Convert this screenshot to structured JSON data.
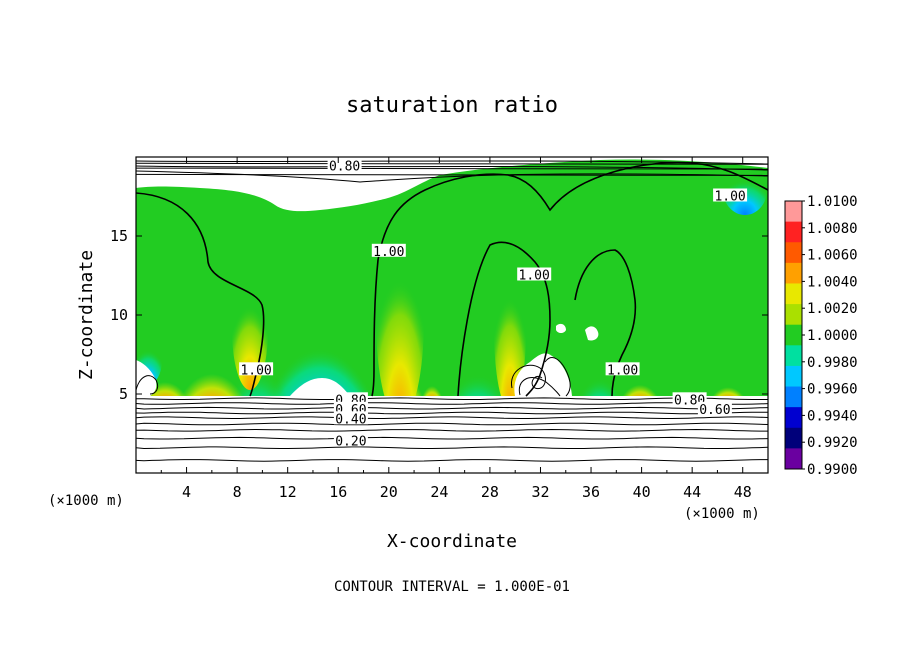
{
  "chart_data": {
    "type": "heatmap",
    "title": "saturation ratio",
    "xlabel": "X-coordinate",
    "ylabel": "Z-coordinate",
    "x_unit_left": "(×1000 m)",
    "x_unit_right": "(×1000 m)",
    "xlim": [
      0,
      50
    ],
    "ylim": [
      0,
      20
    ],
    "x_ticks": [
      4,
      8,
      12,
      16,
      20,
      24,
      28,
      32,
      36,
      40,
      44,
      48
    ],
    "y_ticks": [
      5,
      10,
      15
    ],
    "footer": "CONTOUR INTERVAL = 1.000E-01",
    "colorbar": {
      "min": 0.99,
      "max": 1.01,
      "labels": [
        "1.0100",
        "1.0080",
        "1.0060",
        "1.0040",
        "1.0020",
        "1.0000",
        "0.9980",
        "0.9960",
        "0.9940",
        "0.9920",
        "0.9900"
      ],
      "colors": [
        "#ff9999",
        "#ff2222",
        "#ff5a00",
        "#ffa000",
        "#e8e800",
        "#aae000",
        "#22cc22",
        "#00e0a0",
        "#00c8ff",
        "#0080ff",
        "#0000d0",
        "#00007a",
        "#6a00a0"
      ]
    },
    "contour_labels": [
      {
        "text": "0.80",
        "x": 16.5,
        "z": 19.4
      },
      {
        "text": "1.00",
        "x": 47.0,
        "z": 17.5
      },
      {
        "text": "1.00",
        "x": 20.0,
        "z": 14.0
      },
      {
        "text": "1.00",
        "x": 31.5,
        "z": 12.5
      },
      {
        "text": "1.00",
        "x": 38.5,
        "z": 6.5
      },
      {
        "text": "1.00",
        "x": 9.5,
        "z": 6.5
      },
      {
        "text": "0.80",
        "x": 17.0,
        "z": 4.6
      },
      {
        "text": "0.60",
        "x": 17.0,
        "z": 4.0
      },
      {
        "text": "0.40",
        "x": 17.0,
        "z": 3.4
      },
      {
        "text": "0.20",
        "x": 17.0,
        "z": 2.0
      },
      {
        "text": "0.80",
        "x": 43.8,
        "z": 4.6
      },
      {
        "text": "0.60",
        "x": 45.8,
        "z": 4.0
      }
    ],
    "contour_levels_below_cloud": [
      4.7,
      4.4,
      4.1,
      3.8,
      3.5,
      3.1,
      2.7,
      2.2,
      1.6,
      0.8
    ],
    "contour_levels_top": [
      19.6,
      19.3,
      18.9
    ]
  }
}
